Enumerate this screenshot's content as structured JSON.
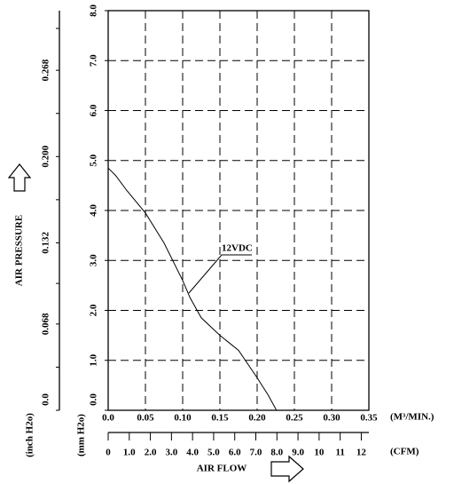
{
  "chart_data": {
    "type": "line",
    "x": [
      0,
      0.01,
      0.025,
      0.05,
      0.075,
      0.1,
      0.11,
      0.125,
      0.15,
      0.175,
      0.2,
      0.215,
      0.226
    ],
    "series": [
      {
        "name": "12VDC",
        "color": "#000000",
        "values": [
          4.85,
          4.7,
          4.4,
          3.95,
          3.35,
          2.6,
          2.25,
          1.85,
          1.5,
          1.2,
          0.65,
          0.3,
          0
        ]
      }
    ],
    "xlim": [
      0,
      0.35
    ],
    "xticks": [
      {
        "value": 0,
        "label": "0.0"
      },
      0.05,
      {
        "value": 0.1,
        "label": "0.10"
      },
      0.15,
      {
        "value": 0.2,
        "label": "0.20"
      },
      0.25,
      {
        "value": 0.3,
        "label": "0.30"
      },
      0.35
    ],
    "x_unit": "(M³/MIN.)",
    "ylim": [
      0,
      8
    ],
    "yticks": [
      {
        "value": 0,
        "label": "0.0"
      },
      {
        "value": 1,
        "label": "1.0"
      },
      {
        "value": 2,
        "label": "2.0"
      },
      {
        "value": 3,
        "label": "3.0"
      },
      {
        "value": 4,
        "label": "4.0"
      },
      {
        "value": 5,
        "label": "5.0"
      },
      {
        "value": 6,
        "label": "6.0"
      },
      {
        "value": 7,
        "label": "7.0"
      },
      {
        "value": 8,
        "label": "8.0"
      }
    ],
    "y_unit": "(mm H2o)",
    "y2lim": [
      0,
      0.315
    ],
    "y2ticks": [
      {
        "value": 0,
        "label": "0.0"
      },
      0.068,
      0.132,
      {
        "value": 0.2,
        "label": "0.200"
      },
      0.268
    ],
    "y2_unit": "(inch H2o)",
    "y_label": "AIR PRESSURE",
    "x2lim": [
      0,
      12.36
    ],
    "x2ticks": [
      0,
      {
        "value": 1,
        "label": "1.0"
      },
      {
        "value": 2,
        "label": "2.0"
      },
      {
        "value": 3,
        "label": "3.0"
      },
      {
        "value": 4,
        "label": "4.0"
      },
      {
        "value": 5,
        "label": "5.0"
      },
      {
        "value": 6,
        "label": "6.0"
      },
      {
        "value": 7,
        "label": "7.0"
      },
      {
        "value": 8,
        "label": "8.0"
      },
      {
        "value": 9,
        "label": "9.0"
      },
      10,
      11,
      12
    ],
    "x2_unit": "(CFM)",
    "x_label": "AIR FLOW",
    "grid": true
  }
}
